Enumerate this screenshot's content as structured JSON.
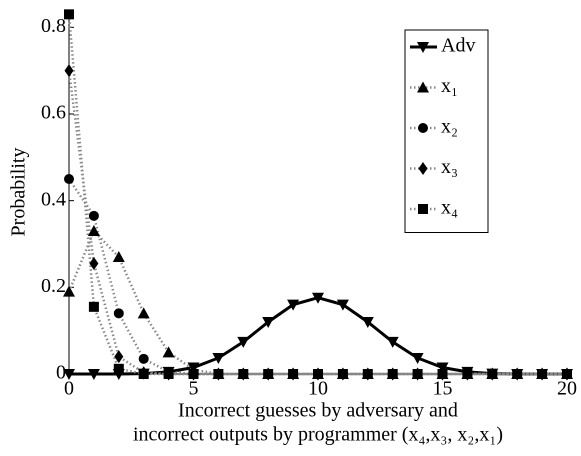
{
  "chart_data": {
    "type": "line",
    "xlabel": [
      "Incorrect guesses by adversary and",
      "incorrect outputs by programmer  (x₄,x₃, x₂,x₁)"
    ],
    "ylabel": "Probability",
    "x": [
      0,
      1,
      2,
      3,
      4,
      5,
      6,
      7,
      8,
      9,
      10,
      11,
      12,
      13,
      14,
      15,
      16,
      17,
      18,
      19,
      20
    ],
    "xlim": [
      0,
      20
    ],
    "xticks": [
      0,
      5,
      10,
      15,
      20
    ],
    "ylim": [
      0,
      0.84
    ],
    "yticks": [
      0,
      0.2,
      0.4,
      0.6,
      0.8
    ],
    "legend": "upper right",
    "series": [
      {
        "name": "Adv",
        "color": "#000000",
        "linestyle": "solid",
        "marker": "triangle-down",
        "values": [
          0,
          0,
          0,
          0.001,
          0.005,
          0.015,
          0.037,
          0.074,
          0.12,
          0.16,
          0.176,
          0.16,
          0.12,
          0.074,
          0.037,
          0.015,
          0.005,
          0.001,
          0,
          0,
          0
        ]
      },
      {
        "name": "x₁",
        "color": "#000000",
        "linestyle": "dotted",
        "marker": "triangle-up",
        "values": [
          0.19,
          0.33,
          0.27,
          0.14,
          0.05,
          0.01,
          0,
          0,
          0,
          0,
          0,
          0,
          0,
          0,
          0,
          0,
          0,
          0,
          0,
          0,
          0
        ]
      },
      {
        "name": "x₂",
        "color": "#000000",
        "linestyle": "dotted",
        "marker": "circle",
        "values": [
          0.45,
          0.365,
          0.14,
          0.035,
          0.005,
          0,
          0,
          0,
          0,
          0,
          0,
          0,
          0,
          0,
          0,
          0,
          0,
          0,
          0,
          0,
          0
        ]
      },
      {
        "name": "x₃",
        "color": "#000000",
        "linestyle": "dotted",
        "marker": "diamond",
        "values": [
          0.7,
          0.255,
          0.04,
          0.003,
          0,
          0,
          0,
          0,
          0,
          0,
          0,
          0,
          0,
          0,
          0,
          0,
          0,
          0,
          0,
          0,
          0
        ]
      },
      {
        "name": "x₄",
        "color": "#000000",
        "linestyle": "dotted",
        "marker": "square",
        "values": [
          0.83,
          0.155,
          0.012,
          0,
          0,
          0,
          0,
          0,
          0,
          0,
          0,
          0,
          0,
          0,
          0,
          0,
          0,
          0,
          0,
          0,
          0
        ]
      }
    ]
  }
}
